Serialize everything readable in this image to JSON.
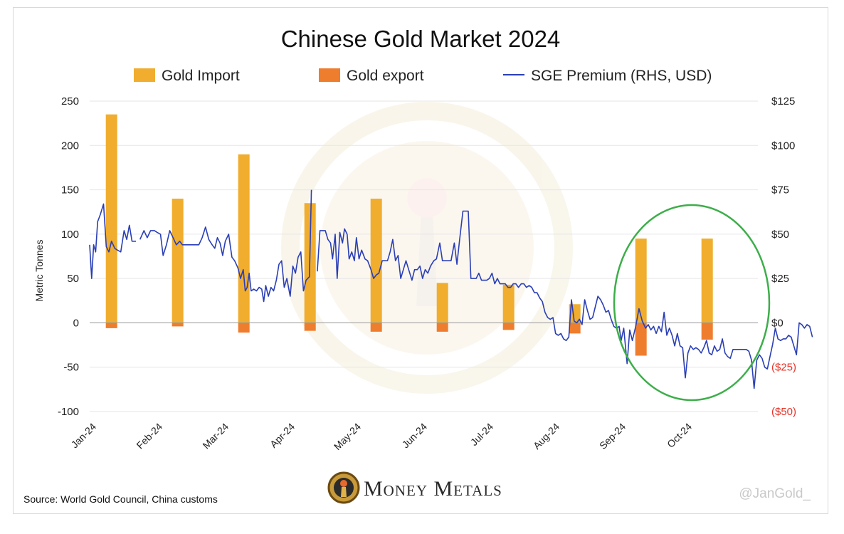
{
  "chart_data": {
    "type": "bar",
    "title": "Chinese Gold Market 2024",
    "xlabel": "",
    "ylabel": "Metric Tonnes",
    "ylim": [
      -100,
      250
    ],
    "y2lim": [
      -50,
      125
    ],
    "y_ticks": [
      "250",
      "200",
      "150",
      "100",
      "50",
      "0",
      "-50",
      "-100"
    ],
    "y2_ticks": [
      "$125",
      "$100",
      "$75",
      "$50",
      "$25",
      "$0",
      "($25)",
      "($50)"
    ],
    "categories": [
      "Jan-24",
      "Feb-24",
      "Mar-24",
      "Apr-24",
      "May-24",
      "Jun-24",
      "Jul-24",
      "Aug-24",
      "Sep-24",
      "Oct-24"
    ],
    "legend": {
      "placement": "top",
      "import_label": "Gold Import",
      "export_label": "Gold export",
      "premium_label": "SGE Premium (RHS, USD)"
    },
    "grid": true,
    "colors": {
      "import": "#f0ad2e",
      "export": "#ef7d2e",
      "premium": "#2a3fb5",
      "circle": "#3dae4a",
      "negative_tick": "#e63327"
    },
    "series": [
      {
        "name": "Gold Import",
        "values": [
          235,
          140,
          190,
          135,
          140,
          45,
          43,
          21,
          95,
          95
        ]
      },
      {
        "name": "Gold export",
        "values": [
          -6,
          -4,
          -11,
          -9,
          -10,
          -10,
          -8,
          -12,
          -37,
          -19
        ]
      }
    ],
    "premium_axis": "right",
    "premium_points": [
      [
        0.0,
        44
      ],
      [
        0.03,
        25
      ],
      [
        0.06,
        44
      ],
      [
        0.09,
        40
      ],
      [
        0.12,
        57
      ],
      [
        0.16,
        61
      ],
      [
        0.21,
        67
      ],
      [
        0.25,
        43
      ],
      [
        0.29,
        40
      ],
      [
        0.33,
        46
      ],
      [
        0.38,
        42
      ],
      [
        0.42,
        41
      ],
      [
        0.47,
        40
      ],
      [
        0.52,
        52
      ],
      [
        0.56,
        47
      ],
      [
        0.6,
        55
      ],
      [
        0.64,
        46
      ],
      [
        0.7,
        46
      ],
      [
        0.76,
        47
      ],
      [
        0.82,
        52
      ],
      [
        0.87,
        48
      ],
      [
        0.92,
        52
      ],
      [
        0.98,
        52
      ],
      [
        1.02,
        51
      ],
      [
        1.07,
        50
      ],
      [
        1.11,
        38
      ],
      [
        1.16,
        44
      ],
      [
        1.21,
        52
      ],
      [
        1.26,
        48
      ],
      [
        1.31,
        44
      ],
      [
        1.36,
        46
      ],
      [
        1.4,
        44
      ],
      [
        1.45,
        44
      ],
      [
        1.5,
        44
      ],
      [
        1.55,
        44
      ],
      [
        1.6,
        44
      ],
      [
        1.65,
        44
      ],
      [
        1.7,
        48
      ],
      [
        1.75,
        54
      ],
      [
        1.8,
        47
      ],
      [
        1.85,
        44
      ],
      [
        1.89,
        42
      ],
      [
        1.93,
        48
      ],
      [
        1.97,
        45
      ],
      [
        2.01,
        38
      ],
      [
        2.05,
        46
      ],
      [
        2.1,
        50
      ],
      [
        2.15,
        37
      ],
      [
        2.19,
        35
      ],
      [
        2.24,
        31
      ],
      [
        2.28,
        25
      ],
      [
        2.32,
        30
      ],
      [
        2.35,
        18
      ],
      [
        2.38,
        20
      ],
      [
        2.41,
        28
      ],
      [
        2.44,
        18
      ],
      [
        2.48,
        19
      ],
      [
        2.52,
        18
      ],
      [
        2.56,
        20
      ],
      [
        2.6,
        19
      ],
      [
        2.63,
        12
      ],
      [
        2.66,
        21
      ],
      [
        2.7,
        15
      ],
      [
        2.74,
        20
      ],
      [
        2.78,
        18
      ],
      [
        2.82,
        24
      ],
      [
        2.86,
        33
      ],
      [
        2.9,
        35
      ],
      [
        2.94,
        20
      ],
      [
        2.98,
        25
      ],
      [
        3.03,
        15
      ],
      [
        3.07,
        32
      ],
      [
        3.11,
        28
      ],
      [
        3.15,
        37
      ],
      [
        3.19,
        40
      ],
      [
        3.23,
        18
      ],
      [
        3.27,
        24
      ],
      [
        3.32,
        26
      ],
      [
        3.35,
        75
      ],
      [
        3.44,
        29
      ],
      [
        3.48,
        52
      ],
      [
        3.52,
        52
      ],
      [
        3.56,
        52
      ],
      [
        3.6,
        47
      ],
      [
        3.64,
        45
      ],
      [
        3.67,
        36
      ],
      [
        3.71,
        50
      ],
      [
        3.74,
        25
      ],
      [
        3.78,
        51
      ],
      [
        3.82,
        45
      ],
      [
        3.85,
        53
      ],
      [
        3.89,
        50
      ],
      [
        3.92,
        36
      ],
      [
        3.96,
        40
      ],
      [
        4.0,
        35
      ],
      [
        4.03,
        48
      ],
      [
        4.07,
        36
      ],
      [
        4.11,
        41
      ],
      [
        4.16,
        36
      ],
      [
        4.2,
        35
      ],
      [
        4.25,
        30
      ],
      [
        4.29,
        25
      ],
      [
        4.33,
        27
      ],
      [
        4.37,
        28
      ],
      [
        4.42,
        35
      ],
      [
        4.46,
        35
      ],
      [
        4.5,
        35
      ],
      [
        4.54,
        40
      ],
      [
        4.58,
        47
      ],
      [
        4.62,
        35
      ],
      [
        4.66,
        38
      ],
      [
        4.7,
        25
      ],
      [
        4.74,
        30
      ],
      [
        4.78,
        35
      ],
      [
        4.82,
        30
      ],
      [
        4.87,
        24
      ],
      [
        4.91,
        30
      ],
      [
        4.95,
        30
      ],
      [
        4.99,
        32
      ],
      [
        5.03,
        25
      ],
      [
        5.07,
        30
      ],
      [
        5.11,
        28
      ],
      [
        5.15,
        32
      ],
      [
        5.2,
        35
      ],
      [
        5.24,
        36
      ],
      [
        5.29,
        45
      ],
      [
        5.33,
        35
      ],
      [
        5.37,
        35
      ],
      [
        5.41,
        35
      ],
      [
        5.46,
        35
      ],
      [
        5.51,
        45
      ],
      [
        5.55,
        33
      ],
      [
        5.59,
        47
      ],
      [
        5.64,
        63
      ],
      [
        5.68,
        63
      ],
      [
        5.72,
        63
      ],
      [
        5.76,
        25
      ],
      [
        5.8,
        25
      ],
      [
        5.84,
        25
      ],
      [
        5.88,
        28
      ],
      [
        5.92,
        24
      ],
      [
        5.96,
        24
      ],
      [
        6.0,
        24
      ],
      [
        6.04,
        25
      ],
      [
        6.08,
        28
      ],
      [
        6.12,
        22
      ],
      [
        6.16,
        25
      ],
      [
        6.2,
        22
      ],
      [
        6.24,
        22
      ],
      [
        6.28,
        22
      ],
      [
        6.32,
        20
      ],
      [
        6.36,
        20
      ],
      [
        6.4,
        22
      ],
      [
        6.44,
        22
      ],
      [
        6.48,
        20
      ],
      [
        6.52,
        22
      ],
      [
        6.56,
        22
      ],
      [
        6.6,
        20
      ],
      [
        6.64,
        21
      ],
      [
        6.68,
        20
      ],
      [
        6.72,
        17
      ],
      [
        6.76,
        17
      ],
      [
        6.8,
        14
      ],
      [
        6.84,
        12
      ],
      [
        6.88,
        6
      ],
      [
        6.92,
        3
      ],
      [
        6.96,
        2
      ],
      [
        7.0,
        3
      ],
      [
        7.04,
        -6
      ],
      [
        7.08,
        -7
      ],
      [
        7.12,
        -6
      ],
      [
        7.16,
        -9
      ],
      [
        7.2,
        -10
      ],
      [
        7.24,
        -8
      ],
      [
        7.28,
        13
      ],
      [
        7.32,
        1
      ],
      [
        7.36,
        0
      ],
      [
        7.4,
        2
      ],
      [
        7.44,
        -1
      ],
      [
        7.48,
        13
      ],
      [
        7.52,
        7
      ],
      [
        7.56,
        2
      ],
      [
        7.6,
        3
      ],
      [
        7.64,
        9
      ],
      [
        7.68,
        15
      ],
      [
        7.72,
        13
      ],
      [
        7.76,
        10
      ],
      [
        7.8,
        6
      ],
      [
        7.84,
        7
      ],
      [
        7.88,
        2
      ],
      [
        7.92,
        -2
      ],
      [
        7.96,
        -3
      ],
      [
        8.0,
        -2
      ],
      [
        8.03,
        -10
      ],
      [
        8.07,
        -3
      ],
      [
        8.12,
        -23
      ],
      [
        8.16,
        -4
      ],
      [
        8.2,
        -10
      ],
      [
        8.25,
        -2
      ],
      [
        8.3,
        8
      ],
      [
        8.35,
        1
      ],
      [
        8.4,
        -3
      ],
      [
        8.44,
        -1
      ],
      [
        8.48,
        -4
      ],
      [
        8.52,
        -2
      ],
      [
        8.56,
        -6
      ],
      [
        8.6,
        -2
      ],
      [
        8.64,
        -5
      ],
      [
        8.68,
        6
      ],
      [
        8.72,
        -7
      ],
      [
        8.76,
        -3
      ],
      [
        8.8,
        -7
      ],
      [
        8.84,
        -13
      ],
      [
        8.88,
        -6
      ],
      [
        8.92,
        -13
      ],
      [
        8.96,
        -14
      ],
      [
        9.0,
        -31
      ],
      [
        9.04,
        -17
      ],
      [
        9.08,
        -13
      ],
      [
        9.12,
        -15
      ],
      [
        9.16,
        -14
      ],
      [
        9.2,
        -15
      ],
      [
        9.24,
        -17
      ],
      [
        9.28,
        -14
      ],
      [
        9.32,
        -10
      ],
      [
        9.36,
        -17
      ],
      [
        9.4,
        -18
      ],
      [
        9.44,
        -13
      ],
      [
        9.48,
        -16
      ],
      [
        9.52,
        -15
      ],
      [
        9.56,
        -9
      ],
      [
        9.6,
        -17
      ],
      [
        9.64,
        -19
      ],
      [
        9.68,
        -20
      ],
      [
        9.72,
        -15
      ],
      [
        9.76,
        -15
      ],
      [
        9.8,
        -15
      ],
      [
        9.84,
        -15
      ],
      [
        9.88,
        -15
      ],
      [
        9.92,
        -15
      ],
      [
        9.96,
        -16
      ],
      [
        10.0,
        -21
      ],
      [
        10.04,
        -37
      ],
      [
        10.08,
        -21
      ],
      [
        10.12,
        -18
      ],
      [
        10.16,
        -20
      ],
      [
        10.2,
        -25
      ],
      [
        10.24,
        -26
      ],
      [
        10.28,
        -19
      ],
      [
        10.32,
        -12
      ],
      [
        10.36,
        -3
      ],
      [
        10.4,
        -9
      ],
      [
        10.44,
        -10
      ],
      [
        10.48,
        -9
      ],
      [
        10.52,
        -9
      ],
      [
        10.56,
        -7
      ],
      [
        10.6,
        -8
      ],
      [
        10.64,
        -13
      ],
      [
        10.68,
        -18
      ],
      [
        10.72,
        0
      ],
      [
        10.76,
        -1
      ],
      [
        10.8,
        -3
      ],
      [
        10.84,
        -1
      ],
      [
        10.88,
        -2
      ],
      [
        10.92,
        -8
      ]
    ],
    "source": "Source: World Gold Council, China customs",
    "brand": "Money Metals",
    "credit": "@JanGold_"
  }
}
